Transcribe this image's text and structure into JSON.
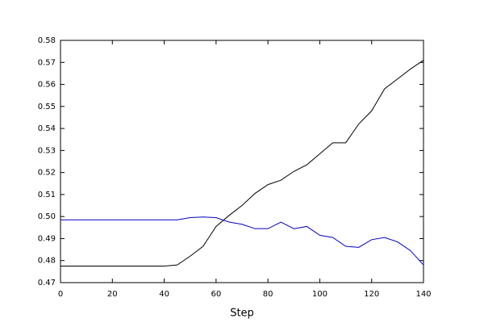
{
  "chart_data": {
    "type": "line",
    "x_label": "Step",
    "x": [
      0,
      5,
      10,
      15,
      20,
      25,
      30,
      35,
      40,
      45,
      50,
      55,
      60,
      65,
      70,
      75,
      80,
      85,
      90,
      95,
      100,
      105,
      110,
      115,
      120,
      125,
      130,
      135,
      140
    ],
    "series": [
      {
        "color": "#000000",
        "values": [
          0.4775,
          0.4775,
          0.4775,
          0.4775,
          0.4775,
          0.4775,
          0.4775,
          0.4775,
          0.4775,
          0.478,
          0.482,
          0.4865,
          0.4955,
          0.5005,
          0.505,
          0.5105,
          0.5145,
          0.5165,
          0.5205,
          0.5235,
          0.5285,
          0.5335,
          0.5335,
          0.542,
          0.548,
          0.558,
          0.5625,
          0.567,
          0.571
        ]
      },
      {
        "color": "#0000c0",
        "values": [
          0.4985,
          0.4985,
          0.4985,
          0.4985,
          0.4985,
          0.4985,
          0.4985,
          0.4985,
          0.4985,
          0.4985,
          0.4995,
          0.4998,
          0.4995,
          0.4975,
          0.4965,
          0.4945,
          0.4945,
          0.4975,
          0.4945,
          0.4955,
          0.4915,
          0.4905,
          0.4865,
          0.486,
          0.4895,
          0.4905,
          0.4885,
          0.4845,
          0.478
        ]
      }
    ],
    "xlim": [
      0,
      140
    ],
    "xticks": [
      0,
      20,
      40,
      60,
      80,
      100,
      120,
      140
    ],
    "ylim": [
      0.47,
      0.58
    ],
    "yticks": [
      0.47,
      0.48,
      0.49,
      {
        "value": 0.5,
        "label": "0.50"
      },
      0.51,
      0.52,
      0.53,
      0.54,
      0.55,
      0.56,
      0.57,
      0.58
    ]
  }
}
